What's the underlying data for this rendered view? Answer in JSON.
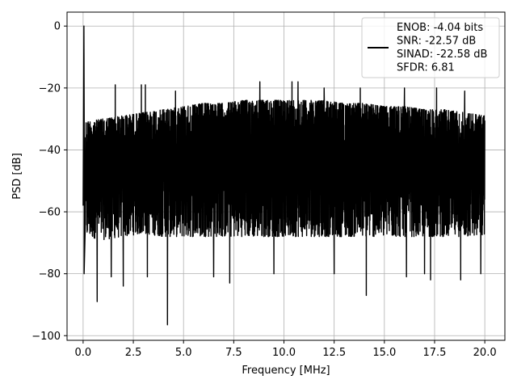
{
  "chart_data": {
    "type": "line",
    "title": "",
    "xlabel": "Frequency [MHz]",
    "ylabel": "PSD [dB]",
    "xlim": [
      -0.8,
      21.0
    ],
    "ylim": [
      -101.5,
      4.5
    ],
    "xticks": [
      0.0,
      2.5,
      5.0,
      7.5,
      10.0,
      12.5,
      15.0,
      17.5,
      20.0
    ],
    "xtick_labels": [
      "0.0",
      "2.5",
      "5.0",
      "7.5",
      "10.0",
      "12.5",
      "15.0",
      "17.5",
      "20.0"
    ],
    "yticks": [
      0,
      -20,
      -40,
      -60,
      -80,
      -100
    ],
    "ytick_labels": [
      "0",
      "−20",
      "−40",
      "−60",
      "−80",
      "−100"
    ],
    "grid": true,
    "legend_position": "upper right",
    "series": [
      {
        "name": "ENOB: -4.04 bits\nSNR: -22.57 dB\nSINAD: -22.58 dB\nSFDR: 6.81",
        "color": "#000000",
        "x_range": [
          0.0,
          20.0
        ],
        "peak": {
          "x": 0.04,
          "y": 0.0
        },
        "upper_envelope": {
          "x": [
            0.1,
            1.0,
            2.0,
            3.0,
            4.0,
            5.0,
            6.0,
            7.0,
            8.0,
            9.0,
            10.0,
            11.0,
            12.0,
            13.0,
            14.0,
            15.0,
            16.0,
            17.0,
            18.0,
            19.0,
            20.0
          ],
          "y": [
            -31,
            -30,
            -29,
            -28,
            -27,
            -26,
            -25,
            -25,
            -24,
            -24,
            -24,
            -24,
            -24,
            -25,
            -25,
            -26,
            -26,
            -27,
            -27,
            -28,
            -29
          ]
        },
        "lower_envelope": {
          "x": [
            0.1,
            1.0,
            2.0,
            3.0,
            4.0,
            5.0,
            6.0,
            7.0,
            8.0,
            9.0,
            10.0,
            11.0,
            12.0,
            13.0,
            14.0,
            15.0,
            16.0,
            17.0,
            18.0,
            19.0,
            20.0
          ],
          "y": [
            -68,
            -69,
            -68,
            -67,
            -68,
            -68,
            -68,
            -68,
            -68,
            -68,
            -68,
            -68,
            -68,
            -68,
            -68,
            -68,
            -68,
            -68,
            -68,
            -68,
            -68
          ]
        },
        "spikes_high": [
          {
            "x": 1.6,
            "y": -19
          },
          {
            "x": 2.9,
            "y": -19
          },
          {
            "x": 3.1,
            "y": -19
          },
          {
            "x": 4.6,
            "y": -21
          },
          {
            "x": 8.8,
            "y": -18
          },
          {
            "x": 10.4,
            "y": -18
          },
          {
            "x": 10.7,
            "y": -18
          },
          {
            "x": 12.0,
            "y": -20
          },
          {
            "x": 13.8,
            "y": -20
          },
          {
            "x": 16.0,
            "y": -20
          },
          {
            "x": 17.6,
            "y": -20
          },
          {
            "x": 19.0,
            "y": -21
          }
        ],
        "spikes_low": [
          {
            "x": 0.05,
            "y": -80
          },
          {
            "x": 0.7,
            "y": -89
          },
          {
            "x": 1.4,
            "y": -81
          },
          {
            "x": 2.0,
            "y": -84
          },
          {
            "x": 3.2,
            "y": -81
          },
          {
            "x": 4.2,
            "y": -96.5
          },
          {
            "x": 6.5,
            "y": -81
          },
          {
            "x": 7.3,
            "y": -83
          },
          {
            "x": 9.5,
            "y": -80
          },
          {
            "x": 12.5,
            "y": -80
          },
          {
            "x": 14.1,
            "y": -87
          },
          {
            "x": 16.1,
            "y": -81
          },
          {
            "x": 17.0,
            "y": -80
          },
          {
            "x": 17.3,
            "y": -82
          },
          {
            "x": 18.8,
            "y": -82
          },
          {
            "x": 19.8,
            "y": -80
          }
        ]
      }
    ]
  }
}
